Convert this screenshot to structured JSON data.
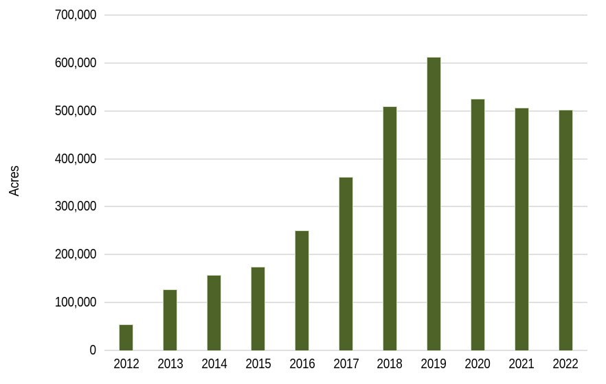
{
  "chart_data": {
    "type": "bar",
    "title": "",
    "xlabel": "",
    "ylabel": "Acres",
    "categories": [
      "2012",
      "2013",
      "2014",
      "2015",
      "2016",
      "2017",
      "2018",
      "2019",
      "2020",
      "2021",
      "2022"
    ],
    "values": [
      54000,
      128000,
      158000,
      175000,
      250000,
      362000,
      509000,
      612000,
      526000,
      507000,
      503000
    ],
    "ylim": [
      0,
      700000
    ],
    "ytick_step": 100000,
    "ytick_labels": [
      "0",
      "100,000",
      "200,000",
      "300,000",
      "400,000",
      "500,000",
      "600,000",
      "700,000"
    ],
    "grid": "horizontal",
    "legend": "none",
    "colors": {
      "bar": "#4e6328",
      "bar_border": "#d4dcc2",
      "gridline": "#e0e0e0",
      "text": "#000000",
      "background": "#ffffff"
    }
  }
}
